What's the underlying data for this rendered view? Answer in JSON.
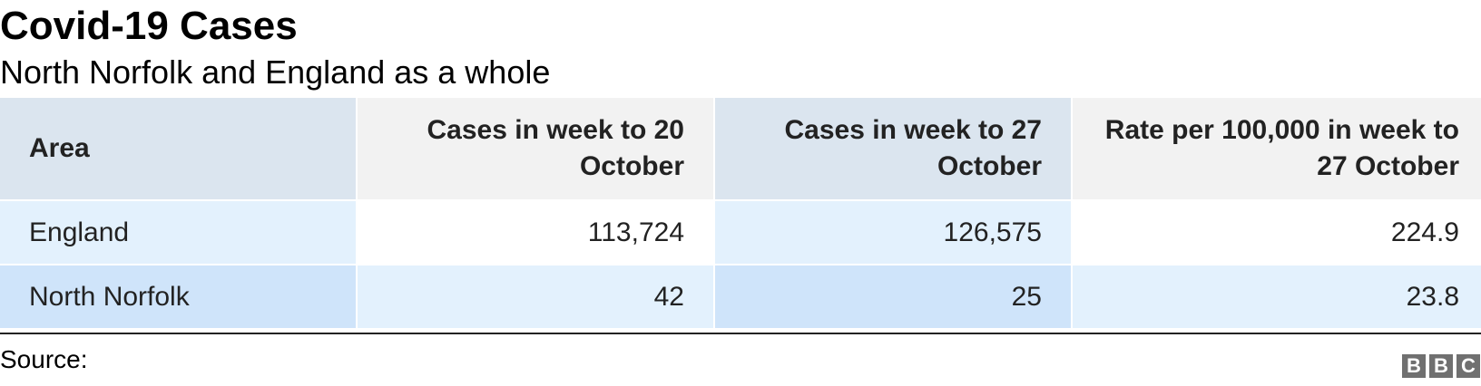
{
  "title": "Covid-19 Cases",
  "subtitle": "North Norfolk and England as a whole",
  "table": {
    "headers": [
      "Area",
      "Cases in week to 20 October",
      "Cases in week to 27 October",
      "Rate per 100,000 in week to 27 October"
    ],
    "rows": [
      [
        "England",
        "113,724",
        "126,575",
        "224.9"
      ],
      [
        "North Norfolk",
        "42",
        "25",
        "23.8"
      ]
    ]
  },
  "source_label": "Source:",
  "logo": {
    "letters": [
      "B",
      "B",
      "C"
    ]
  },
  "colors": {
    "header_area": "#dbe5ef",
    "header_alt": "#f2f2f2",
    "row_light": "#e3f1fd",
    "row_darker": "#cfe4fa",
    "logo_gray": "#707070"
  }
}
